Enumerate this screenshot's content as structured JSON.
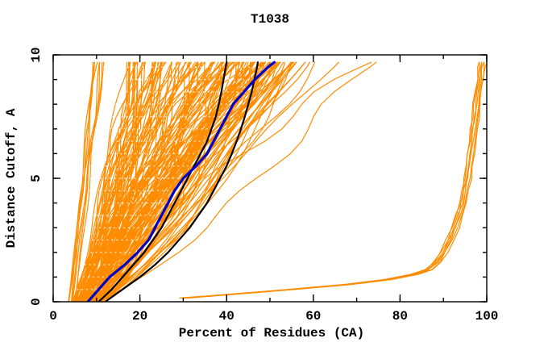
{
  "window": {
    "background": "#ffffff"
  },
  "chart_data": {
    "type": "line",
    "title": "T1038",
    "xlabel": "Percent of Residues (CA)",
    "ylabel": "Distance Cutoff, A",
    "xlim": [
      0,
      100
    ],
    "ylim": [
      0,
      10
    ],
    "x_ticks": [
      0,
      20,
      40,
      60,
      80,
      100
    ],
    "y_ticks": [
      0,
      5,
      10
    ],
    "minor_x_step": 10,
    "minor_y_step": 1,
    "grid": false,
    "legend": "none",
    "axis_color": "#000000",
    "cutoffs": [
      0,
      0.5,
      1,
      1.5,
      2,
      2.5,
      3,
      3.5,
      4,
      4.5,
      5,
      5.5,
      6,
      6.5,
      7,
      7.5,
      8,
      8.5,
      9,
      9.5,
      9.7
    ],
    "series": [
      {
        "name": "highlighted-model-blue",
        "color": "#0000c8",
        "width": 3.2,
        "x": [
          8,
          10.5,
          13,
          16.5,
          19.5,
          22,
          23.5,
          25,
          26.5,
          28,
          30,
          33,
          35.5,
          37,
          38.5,
          40,
          41.5,
          44,
          46.5,
          49.5,
          51
        ]
      },
      {
        "name": "reference-model-black-1",
        "color": "#000000",
        "width": 2.2,
        "x": [
          10.5,
          13.5,
          16,
          18.5,
          21,
          23,
          25,
          26.5,
          28,
          29.5,
          31,
          32.5,
          34,
          35.5,
          36.5,
          37.5,
          38.2,
          38.8,
          39.3,
          39.8,
          40
        ]
      },
      {
        "name": "reference-model-black-2",
        "color": "#000000",
        "width": 2.2,
        "x": [
          12,
          16,
          20,
          23.5,
          26.5,
          29,
          31.5,
          33.5,
          35.5,
          37,
          38.5,
          40,
          41.2,
          42.3,
          43.3,
          44.2,
          45,
          45.8,
          46.4,
          47,
          47.2
        ]
      }
    ],
    "bundle": {
      "name": "high-accuracy-model-bundle-orange",
      "color": "#ff8c00",
      "width": 1.2,
      "count": 7,
      "cutoffs": [
        0.15,
        0.3,
        0.5,
        0.7,
        0.9,
        1.1,
        1.3,
        1.6,
        2,
        2.5,
        3,
        3.5,
        4,
        4.5,
        5,
        5.5,
        6,
        6.5,
        7,
        7.5,
        8,
        8.5,
        9,
        9.5,
        9.7
      ],
      "x": [
        30,
        41,
        55,
        68,
        77,
        83,
        86.5,
        88.5,
        90,
        91.5,
        92.7,
        93.6,
        94.4,
        95,
        95.5,
        95.9,
        96.3,
        96.7,
        97,
        97.4,
        97.7,
        98,
        98.4,
        98.8,
        99
      ]
    },
    "ensemble": {
      "name": "server-model-ensemble-orange",
      "color": "#ff8c00",
      "width": 1.2,
      "count": 150,
      "extra_steep_left": 8,
      "x_start_range": [
        4.5,
        11.5
      ],
      "x_top_main_range": [
        17,
        57
      ],
      "x_top_tail_max": 76
    }
  }
}
